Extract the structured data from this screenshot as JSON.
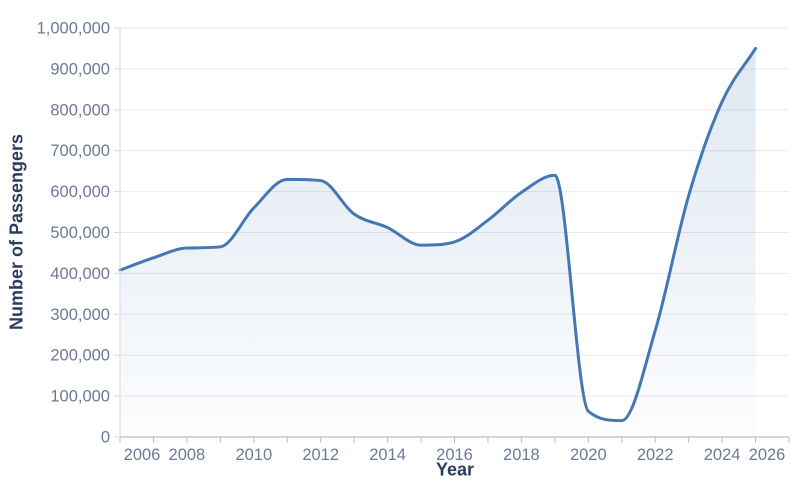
{
  "chart_data": {
    "type": "area",
    "title": "",
    "xlabel": "Year",
    "ylabel": "Number of Passengers",
    "x": [
      2006,
      2007,
      2008,
      2009,
      2010,
      2011,
      2012,
      2013,
      2014,
      2015,
      2016,
      2017,
      2018,
      2019,
      2020,
      2021,
      2022,
      2023,
      2024,
      2025
    ],
    "values": [
      408000,
      438000,
      462000,
      465000,
      560000,
      630000,
      627000,
      545000,
      512000,
      469000,
      477000,
      530000,
      598000,
      640000,
      63000,
      40000,
      260000,
      590000,
      820000,
      950000
    ],
    "series_name": "Number of Passengers",
    "xlim": [
      2006,
      2026
    ],
    "ylim": [
      0,
      1000000
    ],
    "x_labeled_ticks": [
      2006,
      2008,
      2010,
      2012,
      2014,
      2016,
      2018,
      2020,
      2022,
      2024,
      2026
    ],
    "x_minor_tick_step": 1,
    "y_ticks": [
      0,
      100000,
      200000,
      300000,
      400000,
      500000,
      600000,
      700000,
      800000,
      900000,
      1000000
    ],
    "grid": true,
    "legend": "none",
    "colors": {
      "line": "#4577b3",
      "area_top": "rgba(69,119,179,0.18)",
      "area_bottom": "rgba(69,119,179,0.02)",
      "gridline": "#e7e9ee",
      "axis_line": "#b8bec9",
      "left_spine": "#d6dae2",
      "tick_label": "#6c7a97",
      "axis_title": "#2b3c5e",
      "background": "#ffffff"
    }
  }
}
